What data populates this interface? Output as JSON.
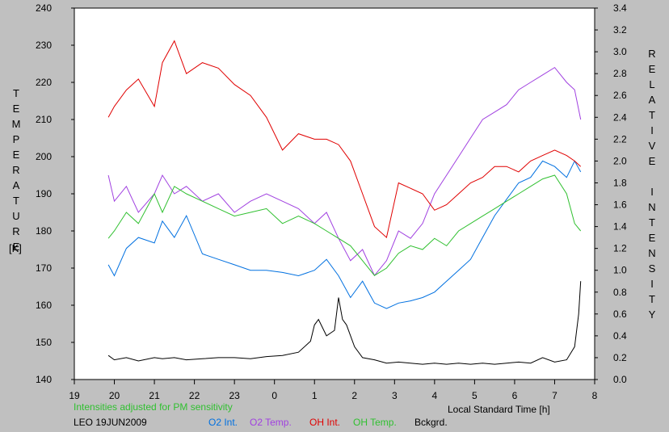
{
  "chart_data": {
    "type": "line",
    "xlabel": "Local Standard Time [h]",
    "ylabel_left": "TEMPERATURE",
    "ylabel_left_unit": "[K]",
    "ylabel_right": "RELATIVE INTENSITY",
    "note": "Intensities adjusted for PM sensitivity",
    "station_date": "LEO 19JUN2009",
    "x_ticks": [
      "19",
      "20",
      "21",
      "22",
      "23",
      "0",
      "1",
      "2",
      "3",
      "4",
      "5",
      "6",
      "7",
      "8"
    ],
    "x_range_hours": [
      19,
      32
    ],
    "left_axis": {
      "range": [
        140,
        240
      ],
      "ticks": [
        140,
        150,
        160,
        170,
        180,
        190,
        200,
        210,
        220,
        230,
        240
      ]
    },
    "right_axis": {
      "range": [
        0.0,
        3.4
      ],
      "ticks": [
        "0.0",
        "0.2",
        "0.4",
        "0.6",
        "0.8",
        "1.0",
        "1.2",
        "1.4",
        "1.6",
        "1.8",
        "2.0",
        "2.2",
        "2.4",
        "2.6",
        "2.8",
        "3.0",
        "3.2",
        "3.4"
      ]
    },
    "legend_position": "bottom",
    "series": [
      {
        "name": "O2 Int.",
        "axis": "right",
        "color": "#0070e0",
        "x": [
          19.85,
          20.0,
          20.3,
          20.6,
          21.0,
          21.2,
          21.5,
          21.8,
          22.2,
          22.6,
          23.0,
          23.4,
          23.8,
          24.2,
          24.6,
          25.0,
          25.3,
          25.6,
          25.9,
          26.2,
          26.5,
          26.8,
          27.1,
          27.4,
          27.7,
          28.0,
          28.3,
          28.6,
          28.9,
          29.2,
          29.5,
          29.8,
          30.1,
          30.4,
          30.7,
          31.0,
          31.3,
          31.5,
          31.65
        ],
        "y": [
          1.05,
          0.95,
          1.2,
          1.3,
          1.25,
          1.45,
          1.3,
          1.5,
          1.15,
          1.1,
          1.05,
          1.0,
          1.0,
          0.98,
          0.95,
          1.0,
          1.1,
          0.95,
          0.75,
          0.9,
          0.7,
          0.65,
          0.7,
          0.72,
          0.75,
          0.8,
          0.9,
          1.0,
          1.1,
          1.3,
          1.5,
          1.65,
          1.8,
          1.85,
          2.0,
          1.95,
          1.85,
          2.0,
          1.9
        ]
      },
      {
        "name": "O2 Temp.",
        "axis": "left",
        "color": "#a040e0",
        "x": [
          19.85,
          20.0,
          20.3,
          20.6,
          21.0,
          21.2,
          21.5,
          21.8,
          22.2,
          22.6,
          23.0,
          23.4,
          23.8,
          24.2,
          24.6,
          25.0,
          25.3,
          25.6,
          25.9,
          26.2,
          26.5,
          26.8,
          27.1,
          27.4,
          27.7,
          28.0,
          28.3,
          28.6,
          28.9,
          29.2,
          29.5,
          29.8,
          30.1,
          30.4,
          30.7,
          31.0,
          31.3,
          31.5,
          31.65
        ],
        "y": [
          195,
          188,
          192,
          185,
          190,
          195,
          190,
          192,
          188,
          190,
          185,
          188,
          190,
          188,
          186,
          182,
          185,
          178,
          172,
          175,
          168,
          172,
          180,
          178,
          182,
          190,
          195,
          200,
          205,
          210,
          212,
          214,
          218,
          220,
          222,
          224,
          220,
          218,
          210
        ]
      },
      {
        "name": "OH Int.",
        "axis": "right",
        "color": "#e00000",
        "x": [
          19.85,
          20.0,
          20.3,
          20.6,
          21.0,
          21.2,
          21.5,
          21.8,
          22.2,
          22.6,
          23.0,
          23.4,
          23.8,
          24.2,
          24.6,
          25.0,
          25.3,
          25.6,
          25.9,
          26.2,
          26.5,
          26.8,
          27.1,
          27.4,
          27.7,
          28.0,
          28.3,
          28.6,
          28.9,
          29.2,
          29.5,
          29.8,
          30.1,
          30.4,
          30.7,
          31.0,
          31.3,
          31.5,
          31.65
        ],
        "y": [
          2.4,
          2.5,
          2.65,
          2.75,
          2.5,
          2.9,
          3.1,
          2.8,
          2.9,
          2.85,
          2.7,
          2.6,
          2.4,
          2.1,
          2.25,
          2.2,
          2.2,
          2.15,
          2.0,
          1.7,
          1.4,
          1.3,
          1.8,
          1.75,
          1.7,
          1.55,
          1.6,
          1.7,
          1.8,
          1.85,
          1.95,
          1.95,
          1.9,
          2.0,
          2.05,
          2.1,
          2.05,
          2.0,
          1.95
        ]
      },
      {
        "name": "OH Temp.",
        "axis": "left",
        "color": "#30c030",
        "x": [
          19.85,
          20.0,
          20.3,
          20.6,
          21.0,
          21.2,
          21.5,
          21.8,
          22.2,
          22.6,
          23.0,
          23.4,
          23.8,
          24.2,
          24.6,
          25.0,
          25.3,
          25.6,
          25.9,
          26.2,
          26.5,
          26.8,
          27.1,
          27.4,
          27.7,
          28.0,
          28.3,
          28.6,
          28.9,
          29.2,
          29.5,
          29.8,
          30.1,
          30.4,
          30.7,
          31.0,
          31.3,
          31.5,
          31.65
        ],
        "y": [
          178,
          180,
          185,
          182,
          190,
          185,
          192,
          190,
          188,
          186,
          184,
          185,
          186,
          182,
          184,
          182,
          180,
          178,
          176,
          172,
          168,
          170,
          174,
          176,
          175,
          178,
          176,
          180,
          182,
          184,
          186,
          188,
          190,
          192,
          194,
          195,
          190,
          182,
          180
        ]
      },
      {
        "name": "Bckgrd.",
        "axis": "right",
        "color": "#000000",
        "x": [
          19.85,
          20.0,
          20.3,
          20.6,
          21.0,
          21.2,
          21.5,
          21.8,
          22.2,
          22.6,
          23.0,
          23.4,
          23.8,
          24.2,
          24.6,
          24.9,
          25.0,
          25.1,
          25.3,
          25.5,
          25.6,
          25.7,
          25.8,
          26.0,
          26.2,
          26.5,
          26.8,
          27.1,
          27.4,
          27.7,
          28.0,
          28.3,
          28.6,
          28.9,
          29.2,
          29.5,
          29.8,
          30.1,
          30.4,
          30.7,
          31.0,
          31.3,
          31.5,
          31.6,
          31.65
        ],
        "y": [
          0.22,
          0.18,
          0.2,
          0.17,
          0.2,
          0.19,
          0.2,
          0.18,
          0.19,
          0.2,
          0.2,
          0.19,
          0.21,
          0.22,
          0.25,
          0.35,
          0.5,
          0.55,
          0.4,
          0.45,
          0.75,
          0.55,
          0.5,
          0.3,
          0.2,
          0.18,
          0.15,
          0.16,
          0.15,
          0.14,
          0.15,
          0.14,
          0.15,
          0.14,
          0.15,
          0.14,
          0.15,
          0.16,
          0.15,
          0.2,
          0.16,
          0.18,
          0.3,
          0.6,
          0.9
        ]
      }
    ]
  }
}
